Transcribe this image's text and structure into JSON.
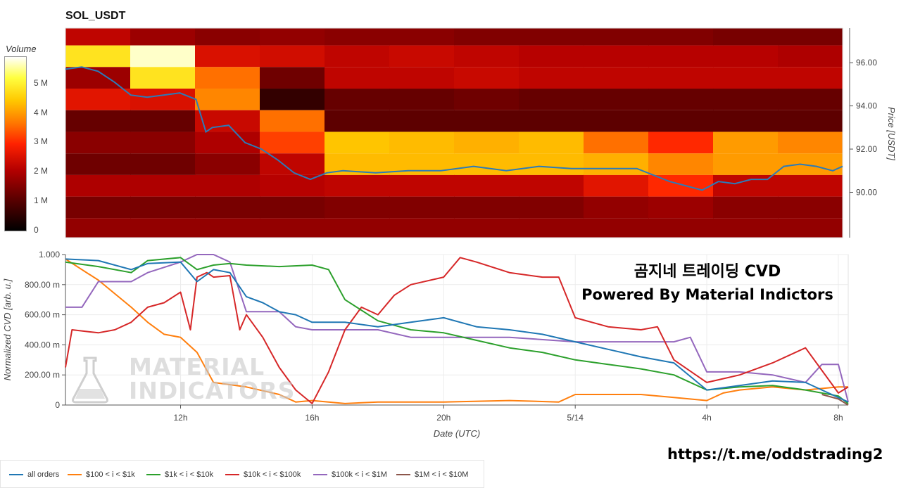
{
  "title": "SOL_USDT",
  "colorbar": {
    "label": "Volume",
    "ticks": [
      {
        "label": "5 M",
        "value": 5
      },
      {
        "label": "4 M",
        "value": 4
      },
      {
        "label": "3 M",
        "value": 3
      },
      {
        "label": "2 M",
        "value": 2
      },
      {
        "label": "1 M",
        "value": 1
      },
      {
        "label": "0",
        "value": 0
      }
    ],
    "max": 5.9
  },
  "overlay": {
    "line1": "곰지네 트레이딩 CVD",
    "line2": "Powered By Material Indictors"
  },
  "watermark": {
    "line1": "MATERIAL",
    "line2": "INDICATORS"
  },
  "link": "https://t.me/oddstrading2",
  "chart_data": [
    {
      "type": "heatmap",
      "title": "SOL_USDT",
      "ylabel": "Price [USDT]",
      "ylim": [
        87.9,
        97.6
      ],
      "yticks": [
        {
          "label": "96.00",
          "value": 96
        },
        {
          "label": "94.00",
          "value": 94
        },
        {
          "label": "92.00",
          "value": 92
        },
        {
          "label": "90.00",
          "value": 90
        }
      ],
      "x_hours_range": [
        8.5,
        32.3
      ],
      "price_bands": [
        97.3,
        96.3,
        95.3,
        94.3,
        93.3,
        92.3,
        91.3,
        90.3,
        89.3,
        88.3
      ],
      "volume_grid_M": [
        [
          2.2,
          1.8,
          1.6,
          1.7,
          1.6,
          1.6,
          1.5,
          1.5,
          1.5,
          1.5,
          1.4,
          1.4
        ],
        [
          4.8,
          5.7,
          2.5,
          2.4,
          2.2,
          2.3,
          2.2,
          2.1,
          2.1,
          2.1,
          2.1,
          2.0
        ],
        [
          1.8,
          4.8,
          3.6,
          1.3,
          2.2,
          2.2,
          2.3,
          2.2,
          2.2,
          2.2,
          2.2,
          2.2
        ],
        [
          2.6,
          2.5,
          3.8,
          0.6,
          1.2,
          1.2,
          1.3,
          1.2,
          1.2,
          1.2,
          1.2,
          1.2
        ],
        [
          1.2,
          1.2,
          2.3,
          3.6,
          1.1,
          1.1,
          1.1,
          1.1,
          1.1,
          1.1,
          1.1,
          1.1
        ],
        [
          1.6,
          1.6,
          2.0,
          3.2,
          4.4,
          4.3,
          4.2,
          4.3,
          3.6,
          3.0,
          4.0,
          3.8
        ],
        [
          1.3,
          1.3,
          1.6,
          2.2,
          4.3,
          4.3,
          4.3,
          4.3,
          4.2,
          3.8,
          4.0,
          4.0
        ],
        [
          2.0,
          2.0,
          2.0,
          2.1,
          2.2,
          2.2,
          2.2,
          2.2,
          2.6,
          3.0,
          2.2,
          2.2
        ],
        [
          1.4,
          1.4,
          1.4,
          1.4,
          1.5,
          1.5,
          1.5,
          1.5,
          1.7,
          1.8,
          1.6,
          1.6
        ],
        [
          1.7,
          1.7,
          1.7,
          1.7,
          1.7,
          1.7,
          1.7,
          1.7,
          1.7,
          1.7,
          1.7,
          1.7
        ]
      ],
      "price_line": {
        "x": [
          8.5,
          9.0,
          9.5,
          10.0,
          10.5,
          11.0,
          11.5,
          12.0,
          12.5,
          12.8,
          13.0,
          13.5,
          14.0,
          14.5,
          15.0,
          15.5,
          16.0,
          16.5,
          17.0,
          18.0,
          19.0,
          20.0,
          21.0,
          22.0,
          23.0,
          24.0,
          25.0,
          26.0,
          27.0,
          28.0,
          28.5,
          29.0,
          29.5,
          30.0,
          30.5,
          31.0,
          31.5,
          32.0,
          32.3
        ],
        "y": [
          95.7,
          95.8,
          95.6,
          95.1,
          94.5,
          94.4,
          94.5,
          94.6,
          94.3,
          92.8,
          93.0,
          93.1,
          92.3,
          92.0,
          91.5,
          90.9,
          90.6,
          90.9,
          91.0,
          90.9,
          91.0,
          91.0,
          91.2,
          91.0,
          91.2,
          91.1,
          91.1,
          91.1,
          90.5,
          90.1,
          90.5,
          90.4,
          90.6,
          90.6,
          91.2,
          91.3,
          91.2,
          91.0,
          91.2
        ]
      }
    },
    {
      "type": "line",
      "xlabel": "Date (UTC)",
      "ylabel": "Normalized CVD [arb. u.]",
      "ylim": [
        0,
        1
      ],
      "x_hours_range": [
        8.5,
        32.3
      ],
      "yticks": [
        {
          "label": "1.000",
          "value": 1.0
        },
        {
          "label": "800.00 m",
          "value": 0.8
        },
        {
          "label": "600.00 m",
          "value": 0.6
        },
        {
          "label": "400.00 m",
          "value": 0.4
        },
        {
          "label": "200.00 m",
          "value": 0.2
        },
        {
          "label": "0",
          "value": 0
        }
      ],
      "xticks": [
        {
          "label": "12h",
          "hour": 12
        },
        {
          "label": "16h",
          "hour": 16
        },
        {
          "label": "20h",
          "hour": 20
        },
        {
          "label": "5/14",
          "hour": 24
        },
        {
          "label": "4h",
          "hour": 28
        },
        {
          "label": "8h",
          "hour": 32
        }
      ],
      "series": [
        {
          "name": "all orders",
          "color": "#1f77b4",
          "x": [
            8.5,
            9.5,
            10.5,
            11.0,
            12.0,
            12.5,
            13.0,
            13.5,
            14.0,
            14.5,
            15.0,
            15.5,
            16.0,
            17.0,
            18.0,
            19.0,
            20.0,
            21.0,
            22.0,
            23.0,
            24.0,
            25.0,
            26.0,
            27.0,
            28.0,
            29.0,
            30.0,
            31.0,
            31.5,
            32.0,
            32.3
          ],
          "y": [
            0.97,
            0.96,
            0.9,
            0.94,
            0.95,
            0.82,
            0.9,
            0.88,
            0.72,
            0.68,
            0.62,
            0.6,
            0.55,
            0.55,
            0.52,
            0.55,
            0.58,
            0.52,
            0.5,
            0.47,
            0.42,
            0.37,
            0.32,
            0.28,
            0.1,
            0.13,
            0.16,
            0.15,
            0.1,
            0.05,
            0.02
          ]
        },
        {
          "name": "$100 < i < $1k",
          "color": "#ff7f0e",
          "x": [
            8.5,
            9.5,
            10.5,
            11.0,
            11.5,
            12.0,
            12.5,
            13.0,
            14.0,
            15.0,
            15.5,
            16.0,
            17.0,
            18.0,
            20.0,
            22.0,
            23.5,
            24.0,
            25.0,
            26.0,
            27.0,
            28.0,
            28.5,
            29.0,
            30.0,
            31.0,
            32.0,
            32.3
          ],
          "y": [
            0.97,
            0.83,
            0.65,
            0.55,
            0.47,
            0.45,
            0.35,
            0.15,
            0.12,
            0.07,
            0.02,
            0.03,
            0.01,
            0.02,
            0.02,
            0.03,
            0.02,
            0.07,
            0.07,
            0.07,
            0.05,
            0.03,
            0.08,
            0.1,
            0.12,
            0.1,
            0.12,
            0.12
          ]
        },
        {
          "name": "$1k < i < $10k",
          "color": "#2ca02c",
          "x": [
            8.5,
            9.5,
            10.5,
            11.0,
            12.0,
            12.5,
            13.0,
            13.5,
            14.0,
            15.0,
            16.0,
            16.5,
            17.0,
            18.0,
            19.0,
            20.0,
            21.0,
            22.0,
            23.0,
            24.0,
            25.0,
            26.0,
            27.0,
            28.0,
            29.0,
            30.0,
            31.0,
            32.0,
            32.3
          ],
          "y": [
            0.95,
            0.92,
            0.88,
            0.96,
            0.98,
            0.9,
            0.93,
            0.94,
            0.93,
            0.92,
            0.93,
            0.9,
            0.7,
            0.56,
            0.5,
            0.48,
            0.43,
            0.38,
            0.35,
            0.3,
            0.27,
            0.24,
            0.2,
            0.1,
            0.12,
            0.13,
            0.1,
            0.06,
            0.01
          ]
        },
        {
          "name": "$10k < i < $100k",
          "color": "#d62728",
          "x": [
            8.5,
            8.7,
            9.5,
            10.0,
            10.5,
            11.0,
            11.5,
            12.0,
            12.3,
            12.5,
            12.8,
            13.0,
            13.5,
            13.8,
            14.0,
            14.5,
            15.0,
            15.5,
            16.0,
            16.5,
            17.0,
            17.5,
            18.0,
            18.5,
            19.0,
            20.0,
            20.5,
            21.0,
            22.0,
            23.0,
            23.5,
            24.0,
            25.0,
            26.0,
            26.5,
            27.0,
            28.0,
            29.0,
            30.0,
            31.0,
            32.0,
            32.3
          ],
          "y": [
            0.25,
            0.5,
            0.48,
            0.5,
            0.55,
            0.65,
            0.68,
            0.75,
            0.5,
            0.85,
            0.88,
            0.85,
            0.86,
            0.5,
            0.6,
            0.45,
            0.25,
            0.1,
            0.01,
            0.22,
            0.5,
            0.65,
            0.6,
            0.73,
            0.8,
            0.85,
            0.98,
            0.95,
            0.88,
            0.85,
            0.85,
            0.58,
            0.52,
            0.5,
            0.52,
            0.3,
            0.15,
            0.2,
            0.28,
            0.38,
            0.08,
            0.12
          ]
        },
        {
          "name": "$100k < i < $1M",
          "color": "#9467bd",
          "x": [
            8.5,
            9.0,
            9.5,
            10.5,
            11.0,
            12.0,
            12.5,
            13.0,
            13.5,
            14.0,
            15.0,
            15.5,
            16.0,
            18.0,
            19.0,
            20.0,
            22.0,
            24.0,
            25.0,
            26.0,
            27.0,
            27.5,
            28.0,
            29.0,
            30.0,
            31.0,
            31.5,
            32.0,
            32.3
          ],
          "y": [
            0.65,
            0.65,
            0.82,
            0.82,
            0.88,
            0.95,
            1.0,
            1.0,
            0.95,
            0.62,
            0.62,
            0.52,
            0.5,
            0.5,
            0.45,
            0.45,
            0.45,
            0.42,
            0.42,
            0.42,
            0.42,
            0.45,
            0.22,
            0.22,
            0.2,
            0.15,
            0.27,
            0.27,
            0.02
          ]
        },
        {
          "name": "$1M < i < $10M",
          "color": "#8c564b",
          "x": [
            31.5,
            32.0,
            32.3
          ],
          "y": [
            0.07,
            0.04,
            0.0
          ]
        }
      ]
    }
  ]
}
